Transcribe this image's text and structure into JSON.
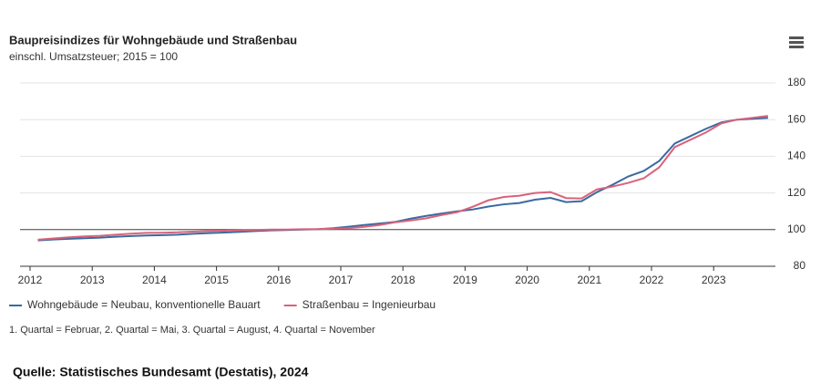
{
  "chart_data": {
    "type": "line",
    "title": "Baupreisindizes für Wohngebäude und Straßenbau",
    "subtitle": "einschl. Umsatzsteuer; 2015 = 100",
    "note": "1. Quartal = Februar, 2. Quartal = Mai, 3. Quartal = August, 4. Quartal = November",
    "source": "Quelle: Statistisches Bundesamt (Destatis), 2024",
    "x": [
      2012.125,
      2012.375,
      2012.625,
      2012.875,
      2013.125,
      2013.375,
      2013.625,
      2013.875,
      2014.125,
      2014.375,
      2014.625,
      2014.875,
      2015.125,
      2015.375,
      2015.625,
      2015.875,
      2016.125,
      2016.375,
      2016.625,
      2016.875,
      2017.125,
      2017.375,
      2017.625,
      2017.875,
      2018.125,
      2018.375,
      2018.625,
      2018.875,
      2019.125,
      2019.375,
      2019.625,
      2019.875,
      2020.125,
      2020.375,
      2020.625,
      2020.875,
      2021.125,
      2021.375,
      2021.625,
      2021.875,
      2022.125,
      2022.375,
      2022.625,
      2022.875,
      2023.125,
      2023.375,
      2023.625,
      2023.875
    ],
    "series": [
      {
        "name": "Wohngebäude = Neubau, konventionelle Bauart",
        "color": "#3a6aa0",
        "values": [
          94.1,
          94.6,
          95.0,
          95.3,
          95.6,
          96.1,
          96.5,
          96.8,
          97.0,
          97.2,
          97.7,
          98.1,
          98.4,
          98.8,
          99.2,
          99.6,
          99.8,
          100.0,
          100.2,
          100.8,
          101.6,
          102.5,
          103.3,
          104.2,
          106.0,
          107.5,
          108.8,
          110.0,
          111.0,
          112.6,
          113.8,
          114.5,
          116.3,
          117.3,
          115.0,
          115.5,
          120.5,
          124.5,
          129.0,
          132.0,
          137.5,
          147.0,
          151.0,
          155.0,
          158.5,
          160.0,
          160.5,
          161.0
        ]
      },
      {
        "name": "Straßenbau = Ingenieurbau",
        "color": "#d9627a",
        "values": [
          94.5,
          95.2,
          95.8,
          96.3,
          96.6,
          97.2,
          97.8,
          98.2,
          98.3,
          98.5,
          98.9,
          99.2,
          99.4,
          99.6,
          99.8,
          100.0,
          100.0,
          100.2,
          100.3,
          100.5,
          100.8,
          101.5,
          102.5,
          104.0,
          105.0,
          106.2,
          108.0,
          109.5,
          112.5,
          116.0,
          117.8,
          118.5,
          120.0,
          120.5,
          117.2,
          117.0,
          122.0,
          123.5,
          125.5,
          128.0,
          134.0,
          145.0,
          149.0,
          153.0,
          158.0,
          160.0,
          161.0,
          162.0
        ]
      }
    ],
    "xlim": [
      2012,
      2024
    ],
    "xticks": [
      2012,
      2013,
      2014,
      2015,
      2016,
      2017,
      2018,
      2019,
      2020,
      2021,
      2022,
      2023
    ],
    "ylim": [
      80,
      180
    ],
    "yticks": [
      80,
      100,
      120,
      140,
      160,
      180
    ],
    "reference_line": 100,
    "grid": true
  }
}
